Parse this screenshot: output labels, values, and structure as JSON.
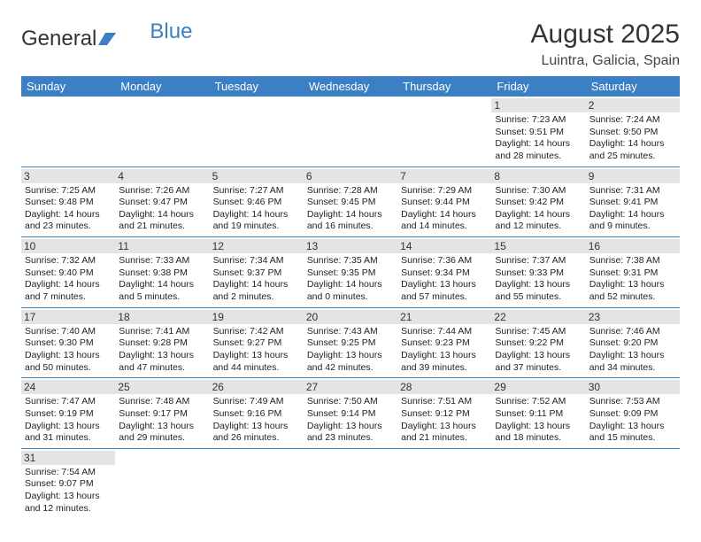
{
  "logo": {
    "part1": "General",
    "part2": "Blue"
  },
  "title": "August 2025",
  "location": "Luintra, Galicia, Spain",
  "colors": {
    "header_bg": "#3b7fc4",
    "daynum_bg": "#e4e4e4",
    "border": "#3b7fc4"
  },
  "weekdays": [
    "Sunday",
    "Monday",
    "Tuesday",
    "Wednesday",
    "Thursday",
    "Friday",
    "Saturday"
  ],
  "weeks": [
    [
      null,
      null,
      null,
      null,
      null,
      {
        "n": "1",
        "sunrise": "7:23 AM",
        "sunset": "9:51 PM",
        "day_h": "14",
        "day_m": "28"
      },
      {
        "n": "2",
        "sunrise": "7:24 AM",
        "sunset": "9:50 PM",
        "day_h": "14",
        "day_m": "25"
      }
    ],
    [
      {
        "n": "3",
        "sunrise": "7:25 AM",
        "sunset": "9:48 PM",
        "day_h": "14",
        "day_m": "23"
      },
      {
        "n": "4",
        "sunrise": "7:26 AM",
        "sunset": "9:47 PM",
        "day_h": "14",
        "day_m": "21"
      },
      {
        "n": "5",
        "sunrise": "7:27 AM",
        "sunset": "9:46 PM",
        "day_h": "14",
        "day_m": "19"
      },
      {
        "n": "6",
        "sunrise": "7:28 AM",
        "sunset": "9:45 PM",
        "day_h": "14",
        "day_m": "16"
      },
      {
        "n": "7",
        "sunrise": "7:29 AM",
        "sunset": "9:44 PM",
        "day_h": "14",
        "day_m": "14"
      },
      {
        "n": "8",
        "sunrise": "7:30 AM",
        "sunset": "9:42 PM",
        "day_h": "14",
        "day_m": "12"
      },
      {
        "n": "9",
        "sunrise": "7:31 AM",
        "sunset": "9:41 PM",
        "day_h": "14",
        "day_m": "9"
      }
    ],
    [
      {
        "n": "10",
        "sunrise": "7:32 AM",
        "sunset": "9:40 PM",
        "day_h": "14",
        "day_m": "7"
      },
      {
        "n": "11",
        "sunrise": "7:33 AM",
        "sunset": "9:38 PM",
        "day_h": "14",
        "day_m": "5"
      },
      {
        "n": "12",
        "sunrise": "7:34 AM",
        "sunset": "9:37 PM",
        "day_h": "14",
        "day_m": "2"
      },
      {
        "n": "13",
        "sunrise": "7:35 AM",
        "sunset": "9:35 PM",
        "day_h": "14",
        "day_m": "0"
      },
      {
        "n": "14",
        "sunrise": "7:36 AM",
        "sunset": "9:34 PM",
        "day_h": "13",
        "day_m": "57"
      },
      {
        "n": "15",
        "sunrise": "7:37 AM",
        "sunset": "9:33 PM",
        "day_h": "13",
        "day_m": "55"
      },
      {
        "n": "16",
        "sunrise": "7:38 AM",
        "sunset": "9:31 PM",
        "day_h": "13",
        "day_m": "52"
      }
    ],
    [
      {
        "n": "17",
        "sunrise": "7:40 AM",
        "sunset": "9:30 PM",
        "day_h": "13",
        "day_m": "50"
      },
      {
        "n": "18",
        "sunrise": "7:41 AM",
        "sunset": "9:28 PM",
        "day_h": "13",
        "day_m": "47"
      },
      {
        "n": "19",
        "sunrise": "7:42 AM",
        "sunset": "9:27 PM",
        "day_h": "13",
        "day_m": "44"
      },
      {
        "n": "20",
        "sunrise": "7:43 AM",
        "sunset": "9:25 PM",
        "day_h": "13",
        "day_m": "42"
      },
      {
        "n": "21",
        "sunrise": "7:44 AM",
        "sunset": "9:23 PM",
        "day_h": "13",
        "day_m": "39"
      },
      {
        "n": "22",
        "sunrise": "7:45 AM",
        "sunset": "9:22 PM",
        "day_h": "13",
        "day_m": "37"
      },
      {
        "n": "23",
        "sunrise": "7:46 AM",
        "sunset": "9:20 PM",
        "day_h": "13",
        "day_m": "34"
      }
    ],
    [
      {
        "n": "24",
        "sunrise": "7:47 AM",
        "sunset": "9:19 PM",
        "day_h": "13",
        "day_m": "31"
      },
      {
        "n": "25",
        "sunrise": "7:48 AM",
        "sunset": "9:17 PM",
        "day_h": "13",
        "day_m": "29"
      },
      {
        "n": "26",
        "sunrise": "7:49 AM",
        "sunset": "9:16 PM",
        "day_h": "13",
        "day_m": "26"
      },
      {
        "n": "27",
        "sunrise": "7:50 AM",
        "sunset": "9:14 PM",
        "day_h": "13",
        "day_m": "23"
      },
      {
        "n": "28",
        "sunrise": "7:51 AM",
        "sunset": "9:12 PM",
        "day_h": "13",
        "day_m": "21"
      },
      {
        "n": "29",
        "sunrise": "7:52 AM",
        "sunset": "9:11 PM",
        "day_h": "13",
        "day_m": "18"
      },
      {
        "n": "30",
        "sunrise": "7:53 AM",
        "sunset": "9:09 PM",
        "day_h": "13",
        "day_m": "15"
      }
    ],
    [
      {
        "n": "31",
        "sunrise": "7:54 AM",
        "sunset": "9:07 PM",
        "day_h": "13",
        "day_m": "12"
      },
      null,
      null,
      null,
      null,
      null,
      null
    ]
  ],
  "labels": {
    "sunrise": "Sunrise: ",
    "sunset": "Sunset: ",
    "daylight": "Daylight: ",
    "hours": " hours",
    "and": "and ",
    "minutes": " minutes."
  }
}
